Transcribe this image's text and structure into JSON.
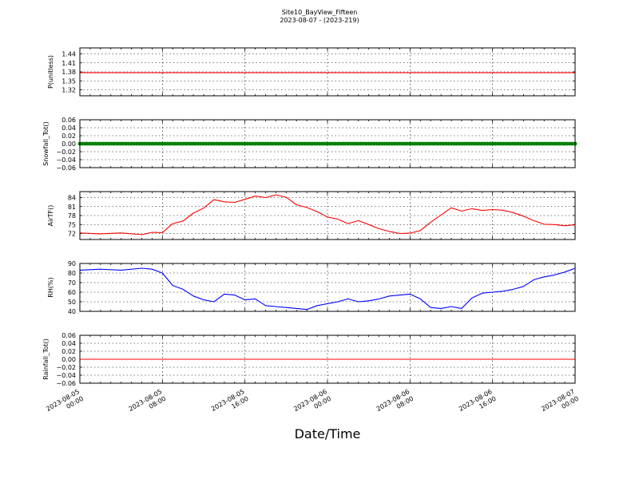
{
  "figure": {
    "title": "Site10_BayView_Fifteen",
    "subtitle": "2023-08-07 - (2023-219)",
    "xlabel": "Date/Time"
  },
  "chart_data": {
    "type": "line",
    "x_range": [
      "2023-08-05 00:00",
      "2023-08-07 00:00"
    ],
    "x_ticks": [
      "2023-08-05 00:00",
      "2023-08-05 08:00",
      "2023-08-05 16:00",
      "2023-08-06 00:00",
      "2023-08-06 08:00",
      "2023-08-06 16:00",
      "2023-08-07 00:00"
    ],
    "x_tick_labels": [
      [
        "2023-08-05",
        "00:00"
      ],
      [
        "2023-08-05",
        "08:00"
      ],
      [
        "2023-08-05",
        "16:00"
      ],
      [
        "2023-08-06",
        "00:00"
      ],
      [
        "2023-08-06",
        "08:00"
      ],
      [
        "2023-08-06",
        "16:00"
      ],
      [
        "2023-08-07",
        "00:00"
      ]
    ],
    "grid": true,
    "panels": [
      {
        "ylabel": "P(unitless)",
        "ylim": [
          1.3,
          1.46
        ],
        "yticks": [
          1.32,
          1.35,
          1.38,
          1.41,
          1.44
        ],
        "ytick_labels": [
          "1.32",
          "1.35",
          "1.38",
          "1.41",
          "1.44"
        ],
        "color": "#ff0000",
        "style": "line",
        "series": [
          {
            "x": [
              "2023-08-05 00:00",
              "2023-08-07 00:00"
            ],
            "y": [
              1.377,
              1.377
            ]
          }
        ]
      },
      {
        "ylabel": "Snowfall_Tot()",
        "ylim": [
          -0.06,
          0.06
        ],
        "yticks": [
          -0.06,
          -0.04,
          -0.02,
          0.0,
          0.02,
          0.04,
          0.06
        ],
        "ytick_labels": [
          "−0.06",
          "−0.04",
          "−0.02",
          "0.00",
          "0.02",
          "0.04",
          "0.06"
        ],
        "color": "#008000",
        "style": "markers",
        "series": [
          {
            "x": [
              "2023-08-05 00:00",
              "2023-08-07 00:00"
            ],
            "y": [
              0.0,
              0.0
            ]
          }
        ]
      },
      {
        "ylabel": "AirTF()",
        "ylim": [
          70,
          86
        ],
        "yticks": [
          72,
          75,
          78,
          81,
          84
        ],
        "ytick_labels": [
          "72",
          "75",
          "78",
          "81",
          "84"
        ],
        "color": "#ff0000",
        "style": "line",
        "series": [
          {
            "x": [
              "2023-08-05 00:00",
              "2023-08-05 02:00",
              "2023-08-05 04:00",
              "2023-08-05 06:00",
              "2023-08-05 07:00",
              "2023-08-05 08:00",
              "2023-08-05 09:00",
              "2023-08-05 10:00",
              "2023-08-05 11:00",
              "2023-08-05 12:00",
              "2023-08-05 13:00",
              "2023-08-05 14:00",
              "2023-08-05 15:00",
              "2023-08-05 16:00",
              "2023-08-05 17:00",
              "2023-08-05 18:00",
              "2023-08-05 19:00",
              "2023-08-05 20:00",
              "2023-08-05 21:00",
              "2023-08-05 22:00",
              "2023-08-05 23:00",
              "2023-08-06 00:00",
              "2023-08-06 01:00",
              "2023-08-06 02:00",
              "2023-08-06 03:00",
              "2023-08-06 04:00",
              "2023-08-06 05:00",
              "2023-08-06 06:00",
              "2023-08-06 07:00",
              "2023-08-06 08:00",
              "2023-08-06 09:00",
              "2023-08-06 10:00",
              "2023-08-06 11:00",
              "2023-08-06 12:00",
              "2023-08-06 13:00",
              "2023-08-06 14:00",
              "2023-08-06 15:00",
              "2023-08-06 16:00",
              "2023-08-06 17:00",
              "2023-08-06 18:00",
              "2023-08-06 19:00",
              "2023-08-06 20:00",
              "2023-08-06 21:00",
              "2023-08-06 22:00",
              "2023-08-06 23:00",
              "2023-08-07 00:00"
            ],
            "y": [
              72.2,
              71.9,
              72.2,
              71.6,
              72.4,
              72.3,
              75.3,
              76.2,
              78.8,
              80.5,
              83.3,
              82.6,
              82.4,
              83.4,
              84.5,
              84.0,
              84.9,
              84.1,
              81.6,
              80.7,
              79.3,
              77.5,
              76.8,
              75.3,
              76.3,
              75.0,
              73.6,
              72.7,
              72.0,
              72.1,
              73.0,
              75.8,
              78.2,
              80.6,
              79.5,
              80.3,
              79.7,
              80.0,
              79.8,
              79.0,
              77.8,
              76.3,
              75.1,
              75.0,
              74.6,
              74.9
            ]
          }
        ]
      },
      {
        "ylabel": "RH(%)",
        "ylim": [
          40,
          90
        ],
        "yticks": [
          40,
          50,
          60,
          70,
          80,
          90
        ],
        "ytick_labels": [
          "40",
          "50",
          "60",
          "70",
          "80",
          "90"
        ],
        "color": "#0000ff",
        "style": "line",
        "series": [
          {
            "x": [
              "2023-08-05 00:00",
              "2023-08-05 02:00",
              "2023-08-05 04:00",
              "2023-08-05 06:00",
              "2023-08-05 07:00",
              "2023-08-05 08:00",
              "2023-08-05 09:00",
              "2023-08-05 10:00",
              "2023-08-05 11:00",
              "2023-08-05 12:00",
              "2023-08-05 13:00",
              "2023-08-05 14:00",
              "2023-08-05 15:00",
              "2023-08-05 16:00",
              "2023-08-05 17:00",
              "2023-08-05 18:00",
              "2023-08-05 19:00",
              "2023-08-05 20:00",
              "2023-08-05 21:00",
              "2023-08-05 22:00",
              "2023-08-05 23:00",
              "2023-08-06 00:00",
              "2023-08-06 01:00",
              "2023-08-06 02:00",
              "2023-08-06 03:00",
              "2023-08-06 04:00",
              "2023-08-06 05:00",
              "2023-08-06 06:00",
              "2023-08-06 07:00",
              "2023-08-06 08:00",
              "2023-08-06 09:00",
              "2023-08-06 10:00",
              "2023-08-06 11:00",
              "2023-08-06 12:00",
              "2023-08-06 13:00",
              "2023-08-06 14:00",
              "2023-08-06 15:00",
              "2023-08-06 16:00",
              "2023-08-06 17:00",
              "2023-08-06 18:00",
              "2023-08-06 19:00",
              "2023-08-06 20:00",
              "2023-08-06 21:00",
              "2023-08-06 22:00",
              "2023-08-06 23:00",
              "2023-08-07 00:00"
            ],
            "y": [
              83,
              84,
              83,
              85,
              84,
              80,
              67,
              63,
              56,
              52,
              50,
              58,
              57,
              52,
              53,
              46,
              45,
              44,
              43,
              42,
              46,
              48,
              50,
              53,
              50,
              51,
              53,
              56,
              57,
              58,
              53,
              44,
              43,
              45,
              43,
              54,
              59,
              60,
              61,
              63,
              66,
              73,
              76,
              78,
              81,
              85
            ]
          }
        ]
      },
      {
        "ylabel": "Rainfall_Tot()",
        "ylim": [
          -0.06,
          0.06
        ],
        "yticks": [
          -0.06,
          -0.04,
          -0.02,
          0.0,
          0.02,
          0.04,
          0.06
        ],
        "ytick_labels": [
          "−0.06",
          "−0.04",
          "−0.02",
          "0.00",
          "0.02",
          "0.04",
          "0.06"
        ],
        "color": "#ff0000",
        "style": "line",
        "series": [
          {
            "x": [
              "2023-08-05 00:00",
              "2023-08-07 00:00"
            ],
            "y": [
              0.0,
              0.0
            ]
          }
        ]
      }
    ]
  }
}
